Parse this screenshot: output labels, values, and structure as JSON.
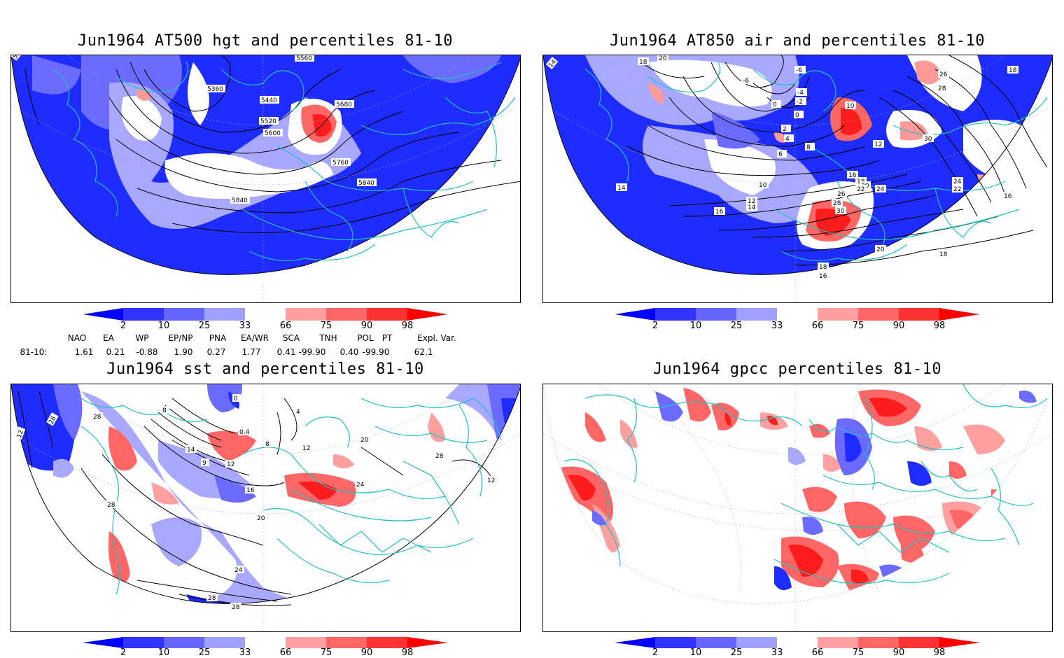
{
  "panels": [
    {
      "id": "p1",
      "title": "Jun1964 AT500 hgt and percentiles 81-10",
      "contour_labels": [
        "5840",
        "5360",
        "5440",
        "5520",
        "5600",
        "5680",
        "5760",
        "5840",
        "5840",
        "5560"
      ]
    },
    {
      "id": "p2",
      "title": "Jun1964 AT850 air and percentiles 81-10",
      "contour_labels": [
        "14",
        "18",
        "20",
        "-6",
        "-6",
        "-4",
        "-2",
        "0",
        "0",
        "2",
        "4",
        "6",
        "8",
        "10",
        "12",
        "14",
        "16",
        "16",
        "18",
        "20",
        "22",
        "24",
        "26",
        "28",
        "30",
        "30",
        "26",
        "28",
        "18",
        "22",
        "24",
        "16",
        "10",
        "12",
        "14",
        "16",
        "18",
        "20",
        "18",
        "16"
      ]
    },
    {
      "id": "p3",
      "title": "Jun1964 sst and percentiles 81-10",
      "contour_labels": [
        "12",
        "28",
        "28",
        "8",
        "0",
        "4",
        "0.4",
        "8",
        "12",
        "14",
        "12",
        "9",
        "16",
        "20",
        "24",
        "28",
        "28",
        "28",
        "20",
        "28",
        "24",
        "12"
      ]
    },
    {
      "id": "p4",
      "title": "Jun1964 gpcc percentiles 81-10",
      "contour_labels": []
    }
  ],
  "colorbar": {
    "labels": [
      "2",
      "10",
      "25",
      "33",
      "66",
      "75",
      "90",
      "98"
    ],
    "colors": [
      "#0000ff",
      "#3333ff",
      "#6666ff",
      "#a0a0ff",
      "#ffffff",
      "#ffa0a0",
      "#ff6666",
      "#ff3333",
      "#ff0000"
    ]
  },
  "indices": {
    "headers": [
      "NAO",
      "EA",
      "WP",
      "EP/NP",
      "PNA",
      "EA/WR",
      "SCA",
      "TNH",
      "POL",
      "PT",
      "Expl. Var."
    ],
    "row_label": "81-10:",
    "values": [
      "1.61",
      "0.21",
      "-0.88",
      "1.90",
      "0.27",
      "1.77",
      "0.41",
      "-99.90",
      "0.40",
      "-99.90",
      "62.1"
    ]
  },
  "colors": {
    "land_outline": "#20c0c0",
    "contour": "#000000",
    "strong_blue": "#1f2cff",
    "strong_red": "#ff1c1c"
  }
}
